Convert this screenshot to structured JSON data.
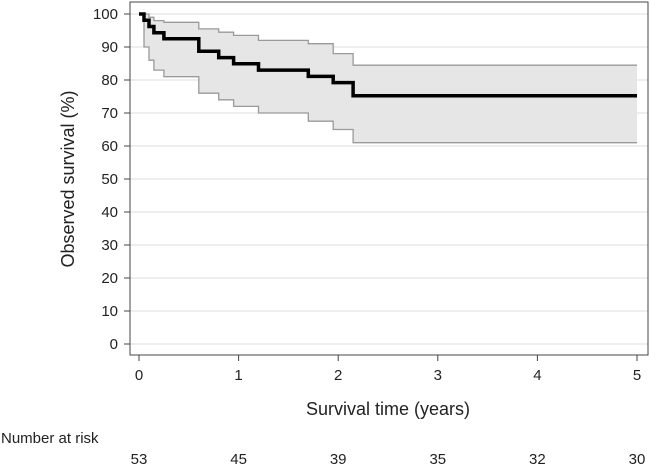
{
  "chart_data": {
    "type": "line",
    "subtype": "kaplan-meier",
    "xlabel": "Survival time (years)",
    "ylabel": "Observed survival (%)",
    "xlim": [
      0,
      5
    ],
    "ylim": [
      0,
      100
    ],
    "x_ticks": [
      "0",
      "1",
      "2",
      "3",
      "4",
      "5"
    ],
    "y_ticks": [
      "0",
      "10",
      "20",
      "30",
      "40",
      "50",
      "60",
      "70",
      "80",
      "90",
      "100"
    ],
    "grid": "horizontal",
    "series": [
      {
        "role": "estimate",
        "step": true,
        "color": "#000000",
        "x": [
          0.0,
          0.05,
          0.1,
          0.15,
          0.25,
          0.6,
          0.8,
          0.95,
          1.2,
          1.7,
          1.95,
          2.15,
          5.0
        ],
        "y": [
          100.0,
          98.1,
          96.2,
          94.3,
          92.5,
          88.7,
          86.8,
          84.9,
          83.0,
          81.1,
          79.2,
          75.2,
          75.2
        ]
      },
      {
        "role": "ci-upper",
        "step": true,
        "color": "#9a9a9a",
        "x": [
          0.0,
          0.05,
          0.1,
          0.15,
          0.25,
          0.6,
          0.8,
          0.95,
          1.2,
          1.7,
          1.95,
          2.15,
          5.0
        ],
        "y": [
          100.0,
          100.0,
          99.0,
          98.0,
          97.5,
          95.5,
          94.5,
          93.5,
          92.0,
          91.0,
          88.0,
          84.5,
          84.5
        ]
      },
      {
        "role": "ci-lower",
        "step": true,
        "color": "#9a9a9a",
        "x": [
          0.0,
          0.05,
          0.1,
          0.15,
          0.25,
          0.6,
          0.8,
          0.95,
          1.2,
          1.7,
          1.95,
          2.15,
          5.0
        ],
        "y": [
          100.0,
          90.0,
          86.0,
          83.0,
          81.0,
          76.0,
          74.0,
          72.0,
          70.0,
          67.5,
          65.0,
          61.0,
          61.0
        ]
      }
    ],
    "ci_fill_color": "#e6e6e6",
    "number_at_risk": {
      "title": "Number at risk",
      "values": [
        "53",
        "45",
        "39",
        "35",
        "32",
        "30"
      ]
    }
  }
}
